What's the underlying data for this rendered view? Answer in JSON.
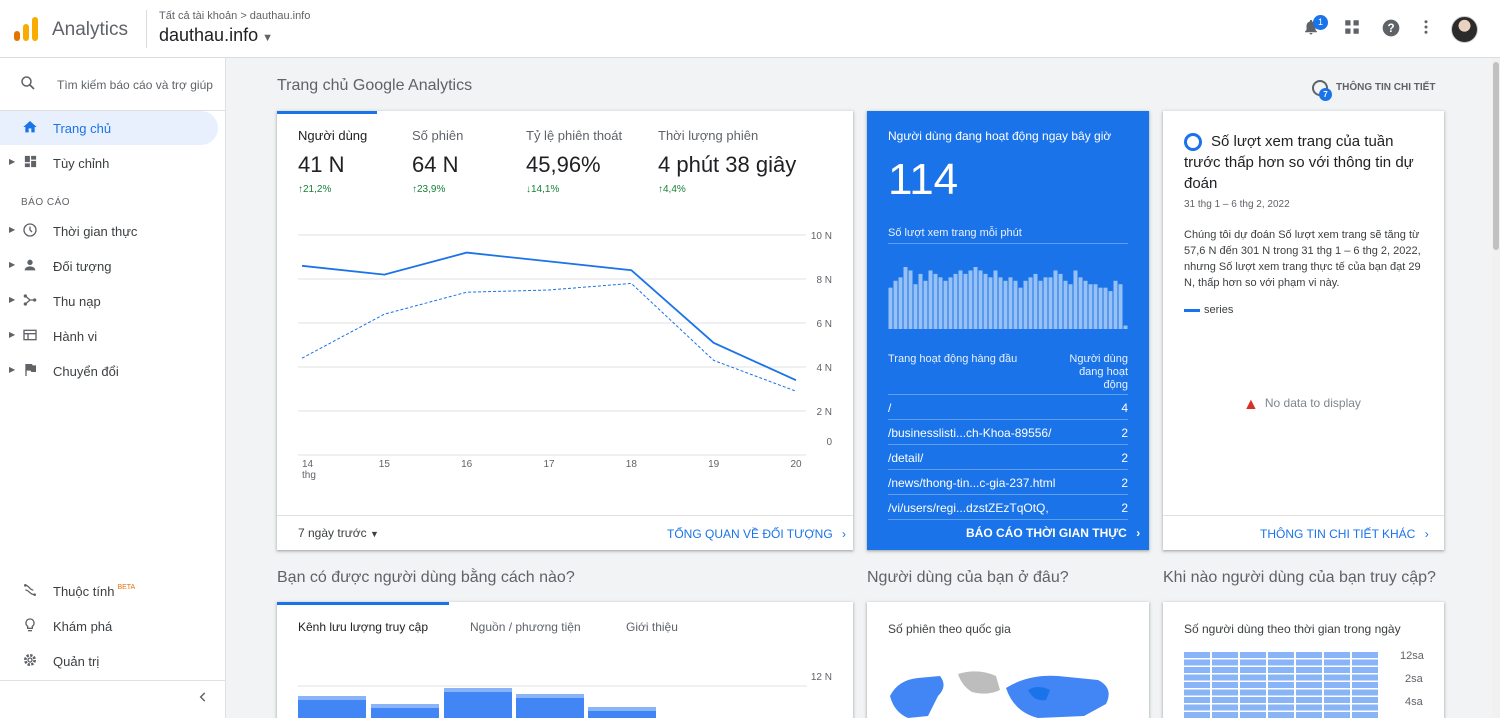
{
  "app": {
    "name": "Analytics"
  },
  "header": {
    "breadcrumb": "Tất cả tài khoản > dauthau.info",
    "account": "dauthau.info",
    "notification_count": "1"
  },
  "sidebar": {
    "search_placeholder": "Tìm kiếm báo cáo và trợ giúp",
    "items": [
      {
        "label": "Trang chủ"
      },
      {
        "label": "Tùy chỉnh"
      }
    ],
    "section_label": "BÁO CÁO",
    "reports": [
      {
        "label": "Thời gian thực"
      },
      {
        "label": "Đối tượng"
      },
      {
        "label": "Thu nạp"
      },
      {
        "label": "Hành vi"
      },
      {
        "label": "Chuyển đổi"
      }
    ],
    "bottom": [
      {
        "label": "Thuộc tính",
        "badge": "BETA"
      },
      {
        "label": "Khám phá"
      },
      {
        "label": "Quản trị"
      }
    ]
  },
  "page": {
    "title": "Trang chủ Google Analytics",
    "insights_button": "THÔNG TIN CHI TIẾT",
    "insights_badge": "7"
  },
  "overview": {
    "metrics": [
      {
        "label": "Người dùng",
        "value": "41 N",
        "change": "↑21,2%",
        "trend": "up"
      },
      {
        "label": "Số phiên",
        "value": "64 N",
        "change": "↑23,9%",
        "trend": "up"
      },
      {
        "label": "Tỷ lệ phiên thoát",
        "value": "45,96%",
        "change": "↓14,1%",
        "trend": "down"
      },
      {
        "label": "Thời lượng phiên",
        "value": "4 phút 38 giây",
        "change": "↑4,4%",
        "trend": "up"
      }
    ],
    "date_range": "7 ngày trước",
    "footer_link": "TỔNG QUAN VỀ ĐỐI TƯỢNG"
  },
  "chart_data": [
    {
      "type": "line",
      "x": [
        "14 thg",
        "15",
        "16",
        "17",
        "18",
        "19",
        "20"
      ],
      "series": [
        {
          "values": [
            8.6,
            8.2,
            9.2,
            8.8,
            8.4,
            5.1,
            3.4
          ],
          "style": "solid"
        },
        {
          "values": [
            4.4,
            6.4,
            7.4,
            7.5,
            7.8,
            4.3,
            2.9
          ],
          "style": "dashed"
        }
      ],
      "ytick_labels": [
        "0",
        "2 N",
        "4 N",
        "6 N",
        "8 N",
        "10 N"
      ],
      "ylim": [
        0,
        10
      ]
    },
    {
      "type": "bar",
      "title": "Số lượt xem trang mỗi phút",
      "values": [
        12,
        14,
        15,
        18,
        17,
        13,
        16,
        14,
        17,
        16,
        15,
        14,
        15,
        16,
        17,
        16,
        17,
        18,
        17,
        16,
        15,
        17,
        15,
        14,
        15,
        14,
        12,
        14,
        15,
        16,
        14,
        15,
        15,
        17,
        16,
        14,
        13,
        17,
        15,
        14,
        13,
        13,
        12,
        12,
        11,
        14,
        13,
        1
      ]
    },
    {
      "type": "bar",
      "title": "Kênh lưu lượng truy cập",
      "ytick_labels": [
        "12 N"
      ]
    }
  ],
  "realtime": {
    "title": "Người dùng đang hoạt động ngay bây giờ",
    "count": "114",
    "chart_label": "Số lượt xem trang mỗi phút",
    "col_left": "Trang hoạt động hàng đầu",
    "col_right": "Người dùng đang hoạt động",
    "rows": [
      {
        "page": "/",
        "users": "4"
      },
      {
        "page": "/businesslisti...ch-Khoa-89556/",
        "users": "2"
      },
      {
        "page": "/detail/",
        "users": "2"
      },
      {
        "page": "/news/thong-tin...c-gia-237.html",
        "users": "2"
      },
      {
        "page": "/vi/users/regi...dzstZEzTqOtQ,",
        "users": "2"
      }
    ],
    "footer_link": "BÁO CÁO THỜI GIAN THỰC"
  },
  "insight": {
    "title": "Số lượt xem trang của tuần trước thấp hơn so với thông tin dự đoán",
    "date": "31 thg 1 – 6 thg 2, 2022",
    "body": "Chúng tôi dự đoán Số lượt xem trang sẽ tăng từ 57,6 N đến 301 N trong 31 thg 1 – 6 thg 2, 2022, nhưng Số lượt xem trang thực tế của bạn đạt 29 N, thấp hơn so với phạm vi này.",
    "legend": "series",
    "no_data": "No data to display",
    "footer_link": "THÔNG TIN CHI TIẾT KHÁC"
  },
  "sections": {
    "acquisition": {
      "title": "Bạn có được người dùng bằng cách nào?",
      "tabs": [
        "Kênh lưu lượng truy cập",
        "Nguồn / phương tiện",
        "Giới thiệu"
      ]
    },
    "geo": {
      "title": "Người dùng của bạn ở đâu?",
      "subtitle": "Số phiên theo quốc gia"
    },
    "time": {
      "title": "Khi nào người dùng của bạn truy cập?",
      "subtitle": "Số người dùng theo thời gian trong ngày",
      "hour_labels": [
        "12sa",
        "2sa",
        "4sa"
      ]
    }
  },
  "colors": {
    "accent": "#1a73e8",
    "positive": "#188038",
    "logo_orange": "#f9ab00",
    "logo_dark": "#e37400"
  }
}
